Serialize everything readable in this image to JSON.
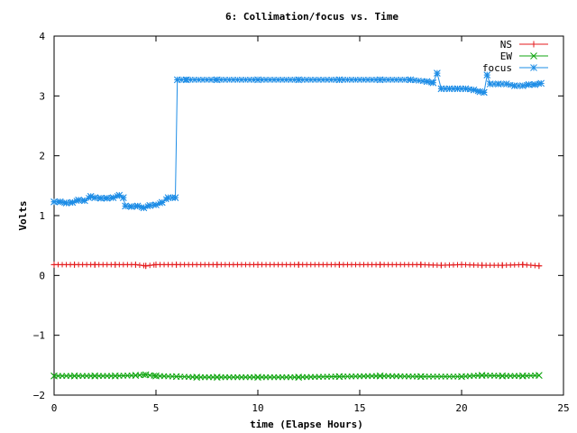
{
  "chart_data": {
    "type": "line",
    "title": "6: Collimation/focus vs. Time",
    "xlabel": "time (Elapse Hours)",
    "ylabel": "Volts",
    "xlim": [
      0,
      25
    ],
    "ylim": [
      -2,
      4
    ],
    "x_ticks": [
      0,
      5,
      10,
      15,
      20,
      25
    ],
    "y_ticks": [
      -2,
      -1,
      0,
      1,
      2,
      3,
      4
    ],
    "x_tick_labels": [
      "0",
      "5",
      "10",
      "15",
      "20",
      "25"
    ],
    "y_tick_labels": [
      "−2",
      "−1",
      "0",
      "1",
      "2",
      "3",
      "4"
    ],
    "grid": false,
    "legend_position": "top-right",
    "series": [
      {
        "name": "NS",
        "color": "#e41a1c",
        "marker": "plus",
        "x": [
          0,
          1,
          2,
          3,
          4,
          4.5,
          5,
          6,
          8,
          10,
          12,
          14,
          16,
          18,
          19,
          20,
          21,
          22,
          23,
          23.8
        ],
        "y": [
          0.18,
          0.18,
          0.18,
          0.18,
          0.18,
          0.16,
          0.18,
          0.18,
          0.18,
          0.18,
          0.18,
          0.18,
          0.18,
          0.18,
          0.17,
          0.18,
          0.17,
          0.17,
          0.18,
          0.16
        ]
      },
      {
        "name": "EW",
        "color": "#11a511",
        "marker": "x",
        "x": [
          0,
          1,
          2,
          3,
          4,
          4.5,
          5,
          6,
          7,
          8,
          10,
          12,
          14,
          16,
          18,
          20,
          21,
          22,
          23,
          23.8
        ],
        "y": [
          -1.68,
          -1.68,
          -1.68,
          -1.68,
          -1.67,
          -1.66,
          -1.68,
          -1.69,
          -1.7,
          -1.7,
          -1.7,
          -1.7,
          -1.69,
          -1.68,
          -1.69,
          -1.69,
          -1.67,
          -1.68,
          -1.68,
          -1.67
        ]
      },
      {
        "name": "focus",
        "color": "#1e8de6",
        "marker": "star",
        "x": [
          0,
          0.3,
          0.6,
          0.9,
          1.2,
          1.5,
          1.8,
          2.0,
          2.3,
          2.6,
          2.9,
          3.2,
          3.4,
          3.5,
          3.8,
          4.1,
          4.4,
          4.7,
          5.0,
          5.3,
          5.6,
          5.95,
          6.05,
          6.5,
          8,
          10,
          12,
          14,
          16,
          17.5,
          18.3,
          18.6,
          18.8,
          19.0,
          19.4,
          19.8,
          20.2,
          20.6,
          20.9,
          21.1,
          21.25,
          21.4,
          21.8,
          22.2,
          22.6,
          23.0,
          23.3,
          23.6,
          23.9
        ],
        "y": [
          1.23,
          1.23,
          1.21,
          1.22,
          1.26,
          1.25,
          1.32,
          1.3,
          1.29,
          1.29,
          1.3,
          1.34,
          1.3,
          1.16,
          1.15,
          1.16,
          1.13,
          1.17,
          1.18,
          1.22,
          1.3,
          1.3,
          3.27,
          3.27,
          3.27,
          3.27,
          3.27,
          3.27,
          3.27,
          3.27,
          3.24,
          3.22,
          3.38,
          3.12,
          3.12,
          3.12,
          3.12,
          3.1,
          3.07,
          3.06,
          3.35,
          3.2,
          3.2,
          3.2,
          3.17,
          3.17,
          3.19,
          3.19,
          3.21
        ]
      }
    ]
  }
}
